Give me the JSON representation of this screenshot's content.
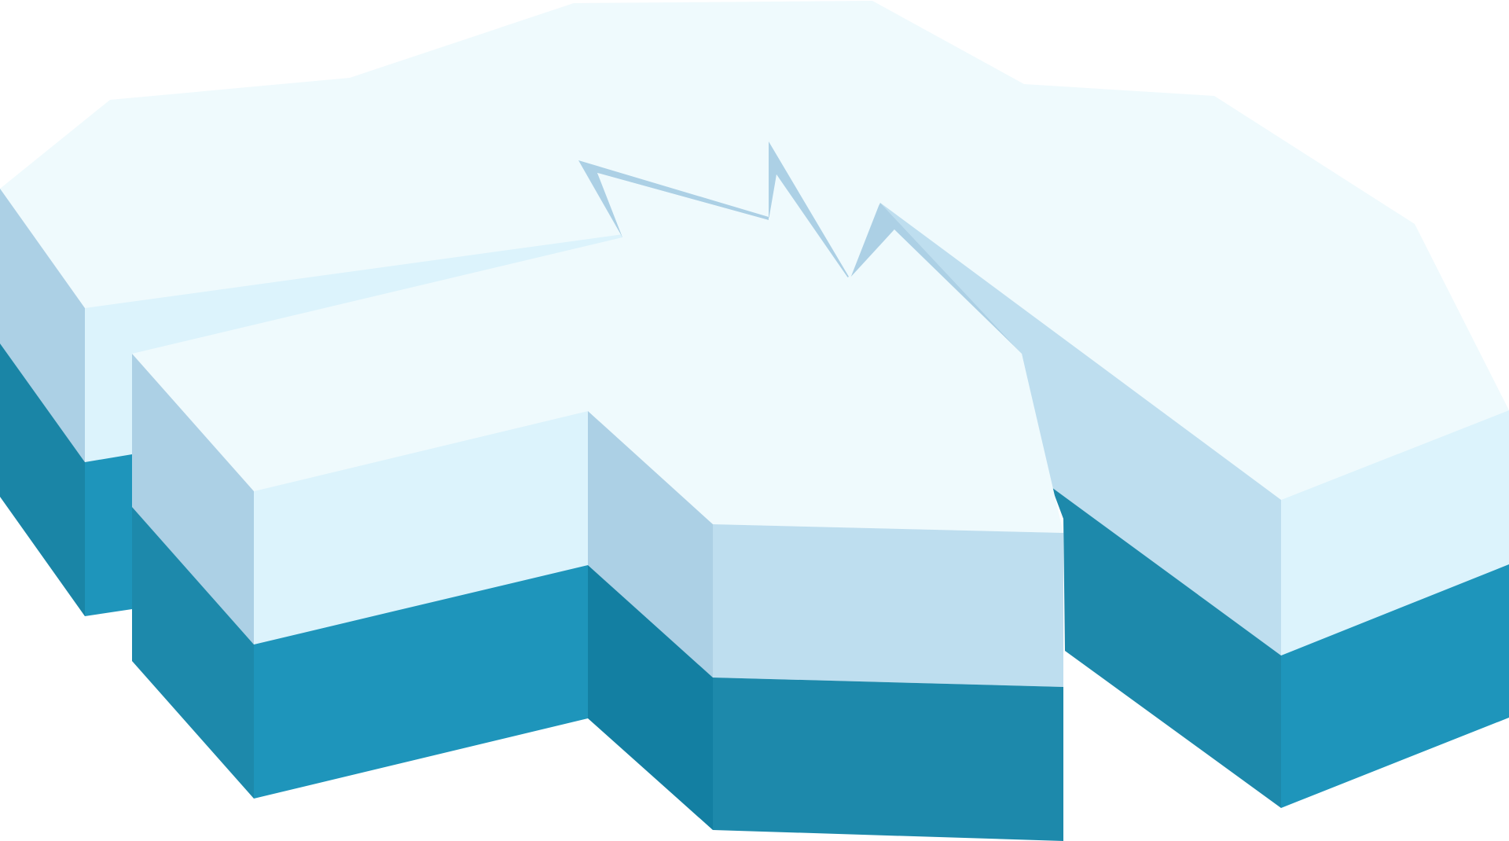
{
  "illustration": {
    "subject": "ice-floe",
    "colors": {
      "top_surface": "#EFFAFD",
      "upper_side_light": "#DCF3FC",
      "upper_side_mid": "#BEDEEF",
      "upper_side_shade": "#ACD0E5",
      "lower_side_light": "#1E95BB",
      "lower_side_mid": "#1D89AB",
      "lower_side_shade": "#1A85A6",
      "lower_side_dark": "#137FA2",
      "crack_shadow": "#ACD0E5",
      "background": "#FFFFFF"
    }
  }
}
